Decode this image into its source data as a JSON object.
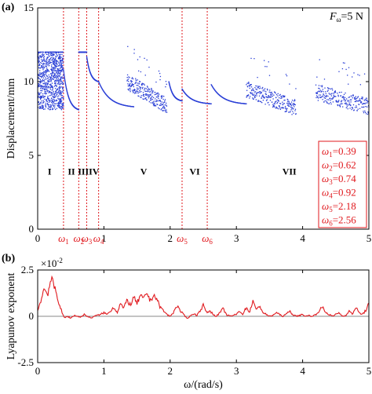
{
  "chart_data": [
    {
      "type": "scatter",
      "panel_label": "(a)",
      "annotation": {
        "main": "F",
        "sub": "ω",
        "rest": "=5 N"
      },
      "ylabel": "Displacement/mm",
      "xlim": [
        0,
        5
      ],
      "ylim": [
        0,
        15
      ],
      "xticks": [
        "0",
        "1",
        "2",
        "3",
        "4",
        "5"
      ],
      "yticks": [
        "0",
        "5",
        "10",
        "15"
      ],
      "regions": [
        "I",
        "II",
        "III",
        "IV",
        "V",
        "VI",
        "VII"
      ],
      "region_centers": [
        0.18,
        0.51,
        0.69,
        0.85,
        1.6,
        2.37,
        3.8
      ],
      "omegas": [
        {
          "base": "ω",
          "sub": "1",
          "value": 0.39,
          "text": "=0.39"
        },
        {
          "base": "ω",
          "sub": "2",
          "value": 0.62,
          "text": "=0.62"
        },
        {
          "base": "ω",
          "sub": "3",
          "value": 0.74,
          "text": "=0.74"
        },
        {
          "base": "ω",
          "sub": "4",
          "value": 0.92,
          "text": "=0.92"
        },
        {
          "base": "ω",
          "sub": "5",
          "value": 2.18,
          "text": "=2.18"
        },
        {
          "base": "ω",
          "sub": "6",
          "value": 2.56,
          "text": "=2.56"
        }
      ],
      "segments": [
        {
          "x0": 0.0,
          "x1": 0.39,
          "kind": "band",
          "ymin": 8.1,
          "ymax": 12.0
        },
        {
          "x0": 0.39,
          "x1": 0.62,
          "kind": "decay",
          "y0": 10.8,
          "y1": 8.1
        },
        {
          "x0": 0.62,
          "x1": 0.74,
          "kind": "flat",
          "y0": 12.0,
          "y1": 12.0
        },
        {
          "x0": 0.74,
          "x1": 0.92,
          "kind": "decay",
          "y0": 11.7,
          "y1": 10.0
        },
        {
          "x0": 0.92,
          "x1": 1.45,
          "kind": "decay",
          "y0": 10.0,
          "y1": 8.3
        },
        {
          "x0": 1.35,
          "x1": 1.95,
          "kind": "noisy",
          "y0": 10.0,
          "y1": 8.4
        },
        {
          "x0": 1.98,
          "x1": 2.18,
          "kind": "decay",
          "y0": 10.0,
          "y1": 8.7
        },
        {
          "x0": 2.18,
          "x1": 2.62,
          "kind": "decay",
          "y0": 9.5,
          "y1": 8.5
        },
        {
          "x0": 2.62,
          "x1": 3.15,
          "kind": "decay",
          "y0": 9.8,
          "y1": 8.5
        },
        {
          "x0": 3.15,
          "x1": 3.9,
          "kind": "noisy",
          "y0": 9.5,
          "y1": 8.2
        },
        {
          "x0": 4.2,
          "x1": 5.0,
          "kind": "noisy",
          "y0": 9.3,
          "y1": 8.3
        }
      ]
    },
    {
      "type": "line",
      "panel_label": "(b)",
      "ylabel": "Lyapunov exponent",
      "xlabel": "ω/(rad/s)",
      "multiplier": {
        "base": "×10",
        "exp": "-2"
      },
      "xlim": [
        0,
        5
      ],
      "ylim": [
        -2.5,
        2.5
      ],
      "xticks": [
        "0",
        "1",
        "2",
        "3",
        "4",
        "5"
      ],
      "yticks": [
        "-2.5",
        "0",
        "2.5"
      ],
      "series_color": "#e0191e",
      "x": [
        0.0,
        0.05,
        0.1,
        0.15,
        0.2,
        0.25,
        0.3,
        0.35,
        0.4,
        0.45,
        0.5,
        0.55,
        0.6,
        0.65,
        0.7,
        0.75,
        0.8,
        0.85,
        0.9,
        0.95,
        1.0,
        1.05,
        1.1,
        1.15,
        1.2,
        1.25,
        1.3,
        1.35,
        1.4,
        1.45,
        1.5,
        1.55,
        1.6,
        1.65,
        1.7,
        1.75,
        1.8,
        1.85,
        1.9,
        1.95,
        2.0,
        2.05,
        2.1,
        2.15,
        2.2,
        2.25,
        2.3,
        2.35,
        2.4,
        2.45,
        2.5,
        2.55,
        2.6,
        2.65,
        2.7,
        2.75,
        2.8,
        2.85,
        2.9,
        2.95,
        3.0,
        3.05,
        3.1,
        3.15,
        3.2,
        3.25,
        3.3,
        3.35,
        3.4,
        3.45,
        3.5,
        3.55,
        3.6,
        3.65,
        3.7,
        3.75,
        3.8,
        3.85,
        3.9,
        3.95,
        4.0,
        4.05,
        4.1,
        4.15,
        4.2,
        4.25,
        4.3,
        4.35,
        4.4,
        4.45,
        4.5,
        4.55,
        4.6,
        4.65,
        4.7,
        4.75,
        4.8,
        4.85,
        4.9,
        4.95,
        5.0
      ],
      "y": [
        0.3,
        0.9,
        1.5,
        1.2,
        2.0,
        1.6,
        1.0,
        0.4,
        -0.1,
        0.0,
        -0.1,
        0.05,
        0.0,
        -0.05,
        0.1,
        0.0,
        -0.1,
        0.0,
        0.05,
        0.1,
        0.2,
        0.1,
        0.3,
        0.5,
        0.2,
        0.7,
        0.4,
        0.9,
        0.6,
        1.0,
        0.7,
        1.1,
        0.9,
        1.3,
        0.8,
        1.2,
        0.9,
        0.5,
        0.3,
        0.1,
        0.0,
        0.2,
        0.6,
        0.3,
        0.1,
        -0.1,
        0.0,
        0.15,
        0.05,
        0.3,
        0.6,
        0.2,
        0.3,
        0.1,
        0.0,
        0.2,
        0.4,
        0.1,
        0.0,
        0.05,
        0.1,
        0.3,
        0.1,
        0.5,
        0.2,
        0.9,
        0.3,
        0.6,
        0.2,
        0.1,
        0.0,
        0.05,
        0.2,
        0.1,
        0.0,
        0.1,
        0.3,
        0.1,
        0.0,
        0.05,
        0.1,
        0.0,
        0.05,
        0.0,
        0.1,
        0.3,
        0.5,
        0.2,
        0.1,
        0.0,
        0.1,
        0.2,
        0.0,
        0.05,
        0.3,
        0.1,
        0.5,
        0.2,
        0.1,
        0.3,
        0.7
      ]
    }
  ]
}
